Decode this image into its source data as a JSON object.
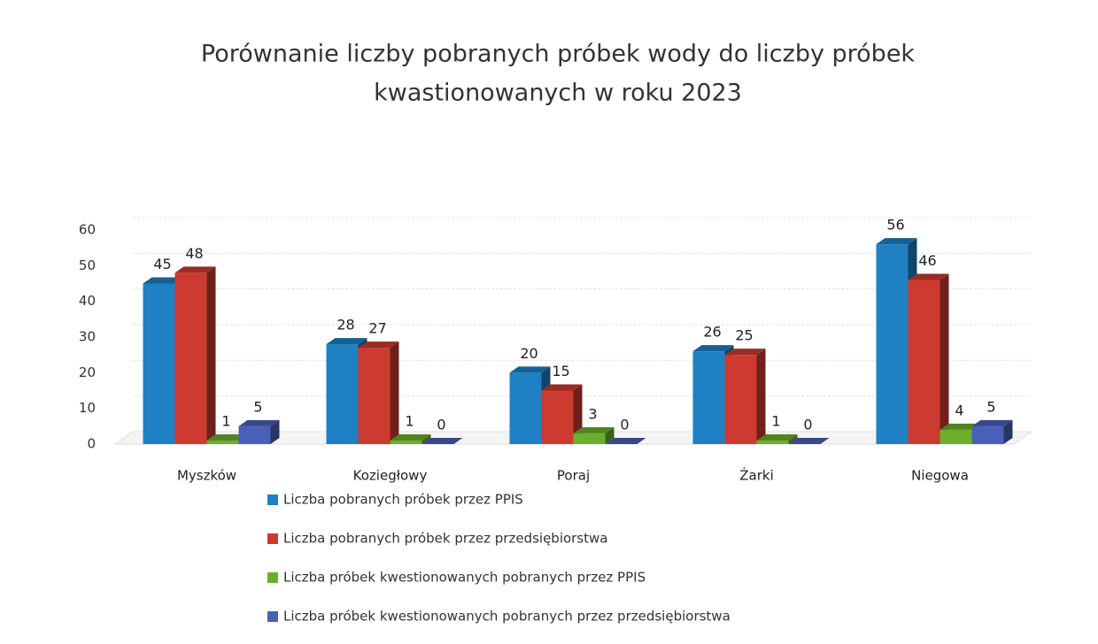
{
  "chart_data": {
    "type": "bar",
    "title": [
      "Porównanie liczby pobranych próbek wody do liczby próbek",
      "kwastionowanych w roku 2023"
    ],
    "categories": [
      "Myszków",
      "Koziegłowy",
      "Poraj",
      "Żarki",
      "Niegowa"
    ],
    "series": [
      {
        "name": "Liczba pobranych próbek przez PPIS",
        "color": "#1f80c4",
        "values": [
          45,
          28,
          20,
          26,
          56
        ]
      },
      {
        "name": "Liczba pobranych próbek przez przedsiębiorstwa",
        "color": "#cc3a30",
        "values": [
          48,
          27,
          15,
          25,
          46
        ]
      },
      {
        "name": "Liczba próbek kwestionowanych pobranych przez PPIS",
        "color": "#6caf2c",
        "values": [
          1,
          1,
          3,
          1,
          4
        ]
      },
      {
        "name": "Liczba próbek kwestionowanych pobranych przez przedsiębiorstwa",
        "color": "#4a60b8",
        "values": [
          5,
          0,
          0,
          0,
          5
        ]
      }
    ],
    "ylim": [
      0,
      60
    ],
    "yticks": [
      0,
      10,
      20,
      30,
      40,
      50,
      60
    ],
    "grid": true
  }
}
